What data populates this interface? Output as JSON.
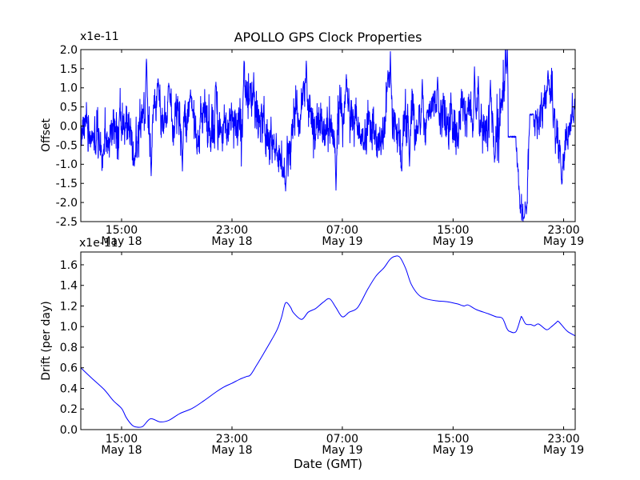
{
  "figure": {
    "background_color": "#ffffff",
    "text_color": "#000000"
  },
  "chart_data": [
    {
      "type": "line",
      "id": "offset",
      "title": "APOLLO GPS Clock Properties",
      "ylabel": "Offset",
      "offset_text": "x1e-11",
      "line_color": "#0000ff",
      "ylim": [
        -2.5,
        2.0
      ],
      "ytick_values": [
        2.0,
        1.5,
        1.0,
        0.5,
        0.0,
        -0.5,
        -1.0,
        -1.5,
        -2.0,
        -2.5
      ],
      "ytick_labels": [
        "2.0",
        "1.5",
        "1.0",
        "0.5",
        "0.0",
        "-0.5",
        "-1.0",
        "-1.5",
        "-2.0",
        "-2.5"
      ],
      "xticks": [
        {
          "frac": 0.0825,
          "time": "15:00",
          "date": "May 18"
        },
        {
          "frac": 0.3058,
          "time": "23:00",
          "date": "May 18"
        },
        {
          "frac": 0.529,
          "time": "07:00",
          "date": "May 19"
        },
        {
          "frac": 0.753,
          "time": "15:00",
          "date": "May 19"
        },
        {
          "frac": 0.9766,
          "time": "23:00",
          "date": "May 19"
        }
      ],
      "series_model": {
        "description": "High-rate clock offset residuals: white+random-walk noise around a wandering mean (units 1e-11), with sharp excursions, two flat gap-fill segments, a clipped spike at top and a deep -2.4 trough near the end.",
        "seed": 7,
        "n": 2200,
        "ar_phi": 0.93,
        "ar_sigma": 0.42,
        "ar_clamp": 1.7,
        "white_sigma": 0.52,
        "spike_halfwidth": 6,
        "envelope": [
          [
            0.0,
            -0.35,
            0.38
          ],
          [
            0.03,
            -0.05,
            0.45
          ],
          [
            0.07,
            0.0,
            0.48
          ],
          [
            0.1,
            -0.3,
            0.45
          ],
          [
            0.118,
            0.05,
            0.5
          ],
          [
            0.146,
            0.15,
            0.52
          ],
          [
            0.158,
            0.55,
            0.38
          ],
          [
            0.18,
            0.45,
            0.42
          ],
          [
            0.198,
            -0.2,
            0.48
          ],
          [
            0.213,
            -0.1,
            0.46
          ],
          [
            0.224,
            0.15,
            0.44
          ],
          [
            0.25,
            -0.1,
            0.46
          ],
          [
            0.274,
            0.15,
            0.48
          ],
          [
            0.294,
            -0.1,
            0.48
          ],
          [
            0.32,
            0.35,
            0.52
          ],
          [
            0.342,
            0.3,
            0.52
          ],
          [
            0.362,
            0.0,
            0.46
          ],
          [
            0.392,
            -0.1,
            0.46
          ],
          [
            0.41,
            -0.6,
            0.42
          ],
          [
            0.425,
            -0.25,
            0.44
          ],
          [
            0.448,
            0.55,
            0.46
          ],
          [
            0.47,
            0.25,
            0.44
          ],
          [
            0.494,
            -0.1,
            0.44
          ],
          [
            0.513,
            -0.5,
            0.42
          ],
          [
            0.533,
            0.4,
            0.46
          ],
          [
            0.558,
            0.05,
            0.42
          ],
          [
            0.6,
            0.05,
            0.42
          ],
          [
            0.624,
            0.25,
            0.48
          ],
          [
            0.648,
            -0.15,
            0.48
          ],
          [
            0.676,
            0.15,
            0.44
          ],
          [
            0.7,
            0.3,
            0.46
          ],
          [
            0.733,
            0.1,
            0.48
          ],
          [
            0.765,
            0.1,
            0.44
          ],
          [
            0.796,
            0.1,
            0.48
          ],
          [
            0.816,
            0.0,
            0.48
          ],
          [
            0.843,
            0.1,
            0.52
          ],
          [
            0.855,
            0.4,
            0.5
          ],
          [
            0.864,
            -0.28,
            0.2
          ],
          [
            0.88,
            -0.28,
            0.25
          ],
          [
            0.89,
            -1.9,
            0.35
          ],
          [
            0.899,
            -1.9,
            0.35
          ],
          [
            0.905,
            -0.9,
            0.4
          ],
          [
            0.909,
            0.3,
            0.15
          ],
          [
            0.916,
            0.3,
            0.2
          ],
          [
            0.923,
            0.25,
            0.38
          ],
          [
            0.933,
            0.5,
            0.44
          ],
          [
            0.942,
            0.75,
            0.44
          ],
          [
            0.953,
            0.45,
            0.44
          ],
          [
            0.965,
            -0.45,
            0.44
          ],
          [
            0.971,
            -0.8,
            0.4
          ],
          [
            0.981,
            -0.15,
            0.4
          ],
          [
            0.99,
            0.2,
            0.36
          ],
          [
            1.0,
            0.4,
            0.3
          ]
        ],
        "spikes": [
          [
            0.0437,
            -0.85
          ],
          [
            0.1084,
            -1.05
          ],
          [
            0.1327,
            1.75
          ],
          [
            0.1424,
            -1.3
          ],
          [
            0.1553,
            1.05
          ],
          [
            0.178,
            1.12
          ],
          [
            0.2055,
            -1.18
          ],
          [
            0.2217,
            0.95
          ],
          [
            0.2735,
            1.15
          ],
          [
            0.3301,
            1.7
          ],
          [
            0.3495,
            1.4
          ],
          [
            0.4094,
            -1.35
          ],
          [
            0.4142,
            -1.7
          ],
          [
            0.4563,
            1.7
          ],
          [
            0.5162,
            -1.68
          ],
          [
            0.5372,
            1.35
          ],
          [
            0.6214,
            1.45
          ],
          [
            0.6262,
            1.95
          ],
          [
            0.6489,
            -1.18
          ],
          [
            0.665,
            -1.05
          ],
          [
            0.6909,
            1.22
          ],
          [
            0.7217,
            1.28
          ],
          [
            0.7961,
            1.55
          ],
          [
            0.8042,
            1.3
          ],
          [
            0.8285,
            1.2
          ],
          [
            0.8366,
            -0.95
          ],
          [
            0.8592,
            2.3
          ],
          [
            0.8625,
            2.15
          ],
          [
            0.8964,
            -2.42
          ],
          [
            0.9012,
            -2.3
          ],
          [
            0.945,
            1.45
          ],
          [
            0.9725,
            -1.52
          ]
        ],
        "flats": [
          [
            0.8641,
            0.8803,
            -0.28
          ],
          [
            0.9078,
            0.9159,
            0.3
          ]
        ]
      }
    },
    {
      "type": "line",
      "id": "drift",
      "ylabel": "Drift (per day)",
      "xlabel": "Date (GMT)",
      "offset_text": "x1e-11",
      "line_color": "#0000ff",
      "ylim": [
        0,
        1.724
      ],
      "ytick_values": [
        1.6,
        1.4,
        1.2,
        1.0,
        0.8,
        0.6,
        0.4,
        0.2,
        0.0
      ],
      "ytick_labels": [
        "1.6",
        "1.4",
        "1.2",
        "1.0",
        "0.8",
        "0.6",
        "0.4",
        "0.2",
        "0.0"
      ],
      "xticks": [
        {
          "frac": 0.0825,
          "time": "15:00",
          "date": "May 18"
        },
        {
          "frac": 0.3058,
          "time": "23:00",
          "date": "May 18"
        },
        {
          "frac": 0.529,
          "time": "07:00",
          "date": "May 19"
        },
        {
          "frac": 0.753,
          "time": "15:00",
          "date": "May 19"
        },
        {
          "frac": 0.9766,
          "time": "23:00",
          "date": "May 19"
        }
      ],
      "points": [
        [
          0.0,
          0.6
        ],
        [
          0.022,
          0.5
        ],
        [
          0.047,
          0.39
        ],
        [
          0.066,
          0.28
        ],
        [
          0.0825,
          0.205
        ],
        [
          0.0922,
          0.115
        ],
        [
          0.1035,
          0.045
        ],
        [
          0.112,
          0.025
        ],
        [
          0.125,
          0.03
        ],
        [
          0.1408,
          0.105
        ],
        [
          0.16,
          0.075
        ],
        [
          0.178,
          0.09
        ],
        [
          0.2,
          0.155
        ],
        [
          0.225,
          0.205
        ],
        [
          0.249,
          0.28
        ],
        [
          0.2735,
          0.365
        ],
        [
          0.29,
          0.415
        ],
        [
          0.3058,
          0.45
        ],
        [
          0.322,
          0.49
        ],
        [
          0.335,
          0.515
        ],
        [
          0.343,
          0.53
        ],
        [
          0.355,
          0.62
        ],
        [
          0.37,
          0.74
        ],
        [
          0.387,
          0.88
        ],
        [
          0.398,
          0.98
        ],
        [
          0.406,
          1.09
        ],
        [
          0.4142,
          1.23
        ],
        [
          0.424,
          1.19
        ],
        [
          0.43,
          1.135
        ],
        [
          0.4466,
          1.07
        ],
        [
          0.46,
          1.14
        ],
        [
          0.475,
          1.175
        ],
        [
          0.49,
          1.235
        ],
        [
          0.5032,
          1.27
        ],
        [
          0.516,
          1.185
        ],
        [
          0.5291,
          1.095
        ],
        [
          0.543,
          1.14
        ],
        [
          0.56,
          1.185
        ],
        [
          0.58,
          1.36
        ],
        [
          0.597,
          1.49
        ],
        [
          0.613,
          1.57
        ],
        [
          0.625,
          1.65
        ],
        [
          0.6343,
          1.68
        ],
        [
          0.645,
          1.675
        ],
        [
          0.657,
          1.565
        ],
        [
          0.668,
          1.415
        ],
        [
          0.6828,
          1.31
        ],
        [
          0.698,
          1.27
        ],
        [
          0.719,
          1.25
        ],
        [
          0.7427,
          1.24
        ],
        [
          0.762,
          1.22
        ],
        [
          0.775,
          1.2
        ],
        [
          0.7832,
          1.21
        ],
        [
          0.8,
          1.165
        ],
        [
          0.824,
          1.125
        ],
        [
          0.84,
          1.095
        ],
        [
          0.8528,
          1.08
        ],
        [
          0.862,
          0.98
        ],
        [
          0.868,
          0.952
        ],
        [
          0.88,
          0.95
        ],
        [
          0.8893,
          1.075
        ],
        [
          0.8917,
          1.095
        ],
        [
          0.9,
          1.025
        ],
        [
          0.91,
          1.02
        ],
        [
          0.9175,
          1.008
        ],
        [
          0.926,
          1.025
        ],
        [
          0.9417,
          0.97
        ],
        [
          0.951,
          0.995
        ],
        [
          0.962,
          1.04
        ],
        [
          0.966,
          1.05
        ],
        [
          0.978,
          0.985
        ],
        [
          0.9854,
          0.95
        ],
        [
          1.0,
          0.91
        ]
      ]
    }
  ]
}
